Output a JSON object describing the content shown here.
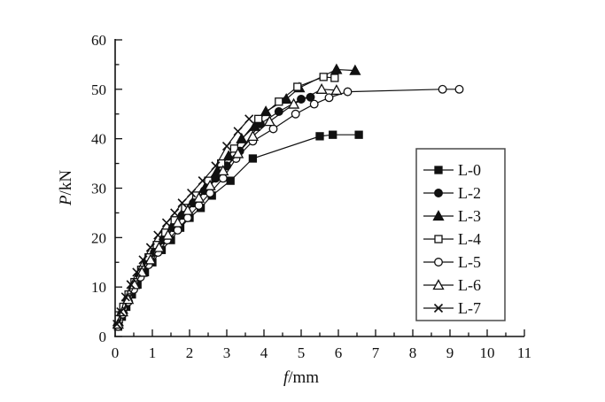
{
  "figure": {
    "background": "#ffffff",
    "ink": "#111111",
    "legend_border": "#4a4a4a"
  },
  "chart_data": {
    "type": "line",
    "title": "",
    "xlabel": "f/mm",
    "ylabel": "P/kN",
    "xlim": [
      0,
      11
    ],
    "ylim": [
      0,
      60
    ],
    "x_major_ticks": [
      0,
      1,
      2,
      3,
      4,
      5,
      6,
      7,
      8,
      9,
      10,
      11
    ],
    "x_minor_step": 0.5,
    "y_major_ticks": [
      0,
      10,
      20,
      30,
      40,
      50,
      60
    ],
    "y_minor_step": 5,
    "grid": false,
    "legend_position": "middle-right",
    "legend_entries": [
      "L-0",
      "L-2",
      "L-3",
      "L-4",
      "L-5",
      "L-6",
      "L-7"
    ],
    "series": [
      {
        "name": "L-0",
        "marker": "square-filled",
        "points": [
          [
            0.08,
            2
          ],
          [
            0.18,
            4
          ],
          [
            0.3,
            6
          ],
          [
            0.45,
            8.5
          ],
          [
            0.6,
            10.5
          ],
          [
            0.8,
            13
          ],
          [
            1.0,
            15
          ],
          [
            1.25,
            17.5
          ],
          [
            1.5,
            19.5
          ],
          [
            1.75,
            22
          ],
          [
            2.0,
            24
          ],
          [
            2.3,
            26
          ],
          [
            2.6,
            28.5
          ],
          [
            3.1,
            31.5
          ],
          [
            3.7,
            36
          ],
          [
            5.5,
            40.5
          ],
          [
            5.85,
            40.8
          ],
          [
            6.55,
            40.8
          ]
        ]
      },
      {
        "name": "L-2",
        "marker": "circle-filled",
        "points": [
          [
            0.08,
            2.5
          ],
          [
            0.2,
            5
          ],
          [
            0.33,
            7.5
          ],
          [
            0.48,
            10
          ],
          [
            0.65,
            12.5
          ],
          [
            0.85,
            15
          ],
          [
            1.05,
            17
          ],
          [
            1.3,
            19.5
          ],
          [
            1.55,
            22
          ],
          [
            1.8,
            24.5
          ],
          [
            2.1,
            27
          ],
          [
            2.4,
            29.5
          ],
          [
            2.7,
            32
          ],
          [
            3.0,
            34.5
          ],
          [
            3.35,
            37.5
          ],
          [
            3.9,
            43
          ],
          [
            4.4,
            45.5
          ],
          [
            5.0,
            48
          ],
          [
            5.25,
            48.4
          ]
        ]
      },
      {
        "name": "L-3",
        "marker": "triangle-filled",
        "points": [
          [
            0.08,
            3
          ],
          [
            0.2,
            5.5
          ],
          [
            0.33,
            8
          ],
          [
            0.5,
            10.5
          ],
          [
            0.68,
            13
          ],
          [
            0.88,
            15.5
          ],
          [
            1.1,
            18
          ],
          [
            1.32,
            20.5
          ],
          [
            1.58,
            23
          ],
          [
            1.85,
            25.5
          ],
          [
            2.15,
            28
          ],
          [
            2.45,
            30.5
          ],
          [
            2.75,
            33.5
          ],
          [
            3.05,
            36.5
          ],
          [
            3.4,
            40
          ],
          [
            3.75,
            42.5
          ],
          [
            4.05,
            45.5
          ],
          [
            4.6,
            48
          ],
          [
            4.95,
            50.3
          ],
          [
            5.95,
            54
          ],
          [
            6.45,
            53.8
          ]
        ]
      },
      {
        "name": "L-4",
        "marker": "square-open",
        "points": [
          [
            0.1,
            3.5
          ],
          [
            0.22,
            6
          ],
          [
            0.36,
            8.5
          ],
          [
            0.52,
            11
          ],
          [
            0.7,
            13.5
          ],
          [
            0.9,
            16
          ],
          [
            1.12,
            18.5
          ],
          [
            1.35,
            21
          ],
          [
            1.6,
            23.5
          ],
          [
            1.88,
            26
          ],
          [
            2.18,
            28.5
          ],
          [
            2.5,
            31.5
          ],
          [
            2.85,
            35
          ],
          [
            3.2,
            38
          ],
          [
            3.85,
            44
          ],
          [
            4.4,
            47.5
          ],
          [
            4.9,
            50.5
          ],
          [
            5.6,
            52.5
          ],
          [
            5.9,
            52.3
          ]
        ]
      },
      {
        "name": "L-5",
        "marker": "circle-open",
        "points": [
          [
            0.08,
            2
          ],
          [
            0.2,
            4.5
          ],
          [
            0.35,
            7
          ],
          [
            0.5,
            9.5
          ],
          [
            0.68,
            12
          ],
          [
            0.9,
            14.5
          ],
          [
            1.15,
            17
          ],
          [
            1.4,
            19.5
          ],
          [
            1.68,
            21.5
          ],
          [
            1.95,
            24
          ],
          [
            2.25,
            26.5
          ],
          [
            2.55,
            29
          ],
          [
            2.9,
            32
          ],
          [
            3.25,
            36
          ],
          [
            3.7,
            39.5
          ],
          [
            4.25,
            42
          ],
          [
            4.85,
            45
          ],
          [
            5.35,
            47
          ],
          [
            5.75,
            48.3
          ],
          [
            6.25,
            49.5
          ],
          [
            8.8,
            50
          ],
          [
            9.25,
            50
          ]
        ]
      },
      {
        "name": "L-6",
        "marker": "triangle-open",
        "points": [
          [
            0.08,
            2.5
          ],
          [
            0.2,
            5
          ],
          [
            0.35,
            7.5
          ],
          [
            0.52,
            10.5
          ],
          [
            0.72,
            13
          ],
          [
            0.95,
            15.5
          ],
          [
            1.18,
            18
          ],
          [
            1.42,
            20.5
          ],
          [
            1.68,
            23
          ],
          [
            1.95,
            25.5
          ],
          [
            2.25,
            28
          ],
          [
            2.55,
            30.5
          ],
          [
            2.9,
            33.5
          ],
          [
            3.3,
            37
          ],
          [
            3.7,
            40.5
          ],
          [
            4.15,
            43.5
          ],
          [
            4.8,
            47
          ],
          [
            5.55,
            50
          ],
          [
            5.95,
            49.8
          ]
        ]
      },
      {
        "name": "L-7",
        "marker": "x-cross",
        "points": [
          [
            0.05,
            2.5
          ],
          [
            0.15,
            5
          ],
          [
            0.28,
            8
          ],
          [
            0.42,
            10.5
          ],
          [
            0.58,
            13
          ],
          [
            0.75,
            15.5
          ],
          [
            0.95,
            18
          ],
          [
            1.15,
            20.5
          ],
          [
            1.38,
            23
          ],
          [
            1.6,
            25
          ],
          [
            1.8,
            27
          ],
          [
            2.05,
            29
          ],
          [
            2.35,
            31.5
          ],
          [
            2.7,
            34.5
          ],
          [
            3.0,
            38.5
          ],
          [
            3.3,
            41.5
          ],
          [
            3.6,
            44
          ]
        ]
      }
    ]
  }
}
